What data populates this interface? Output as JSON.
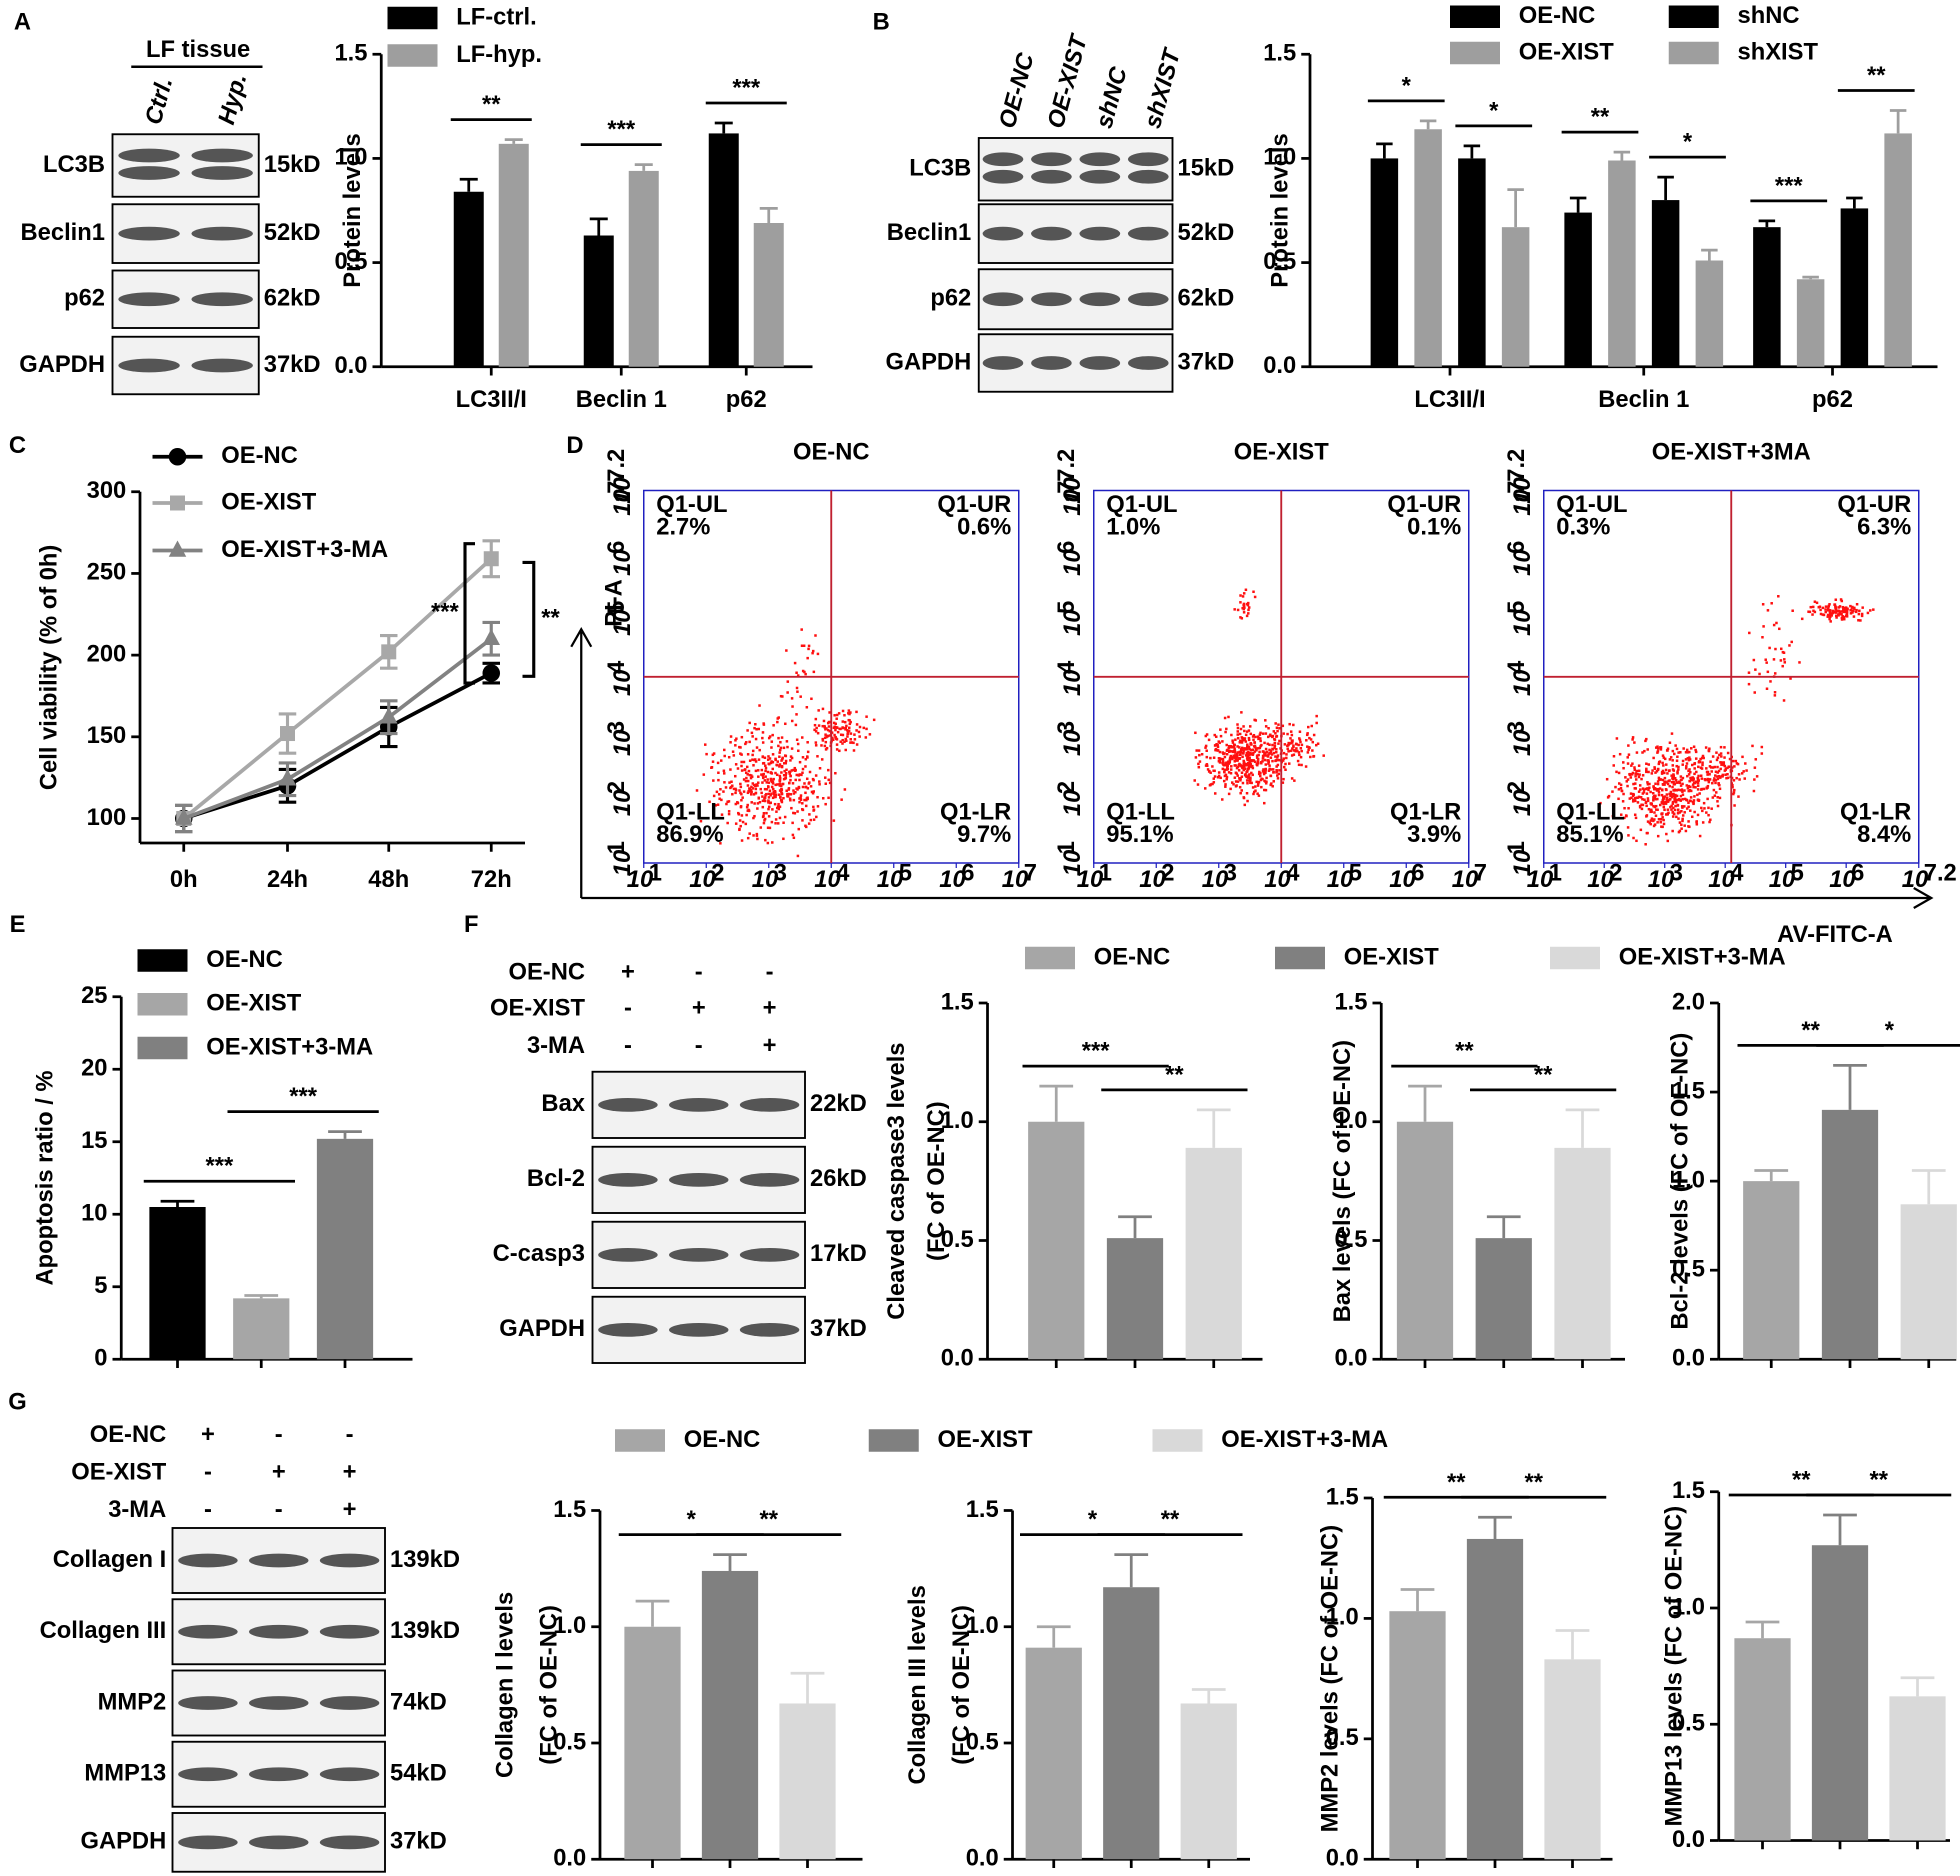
{
  "panels": [
    "A",
    "B",
    "C",
    "D",
    "E",
    "F",
    "G"
  ],
  "blots": [
    {
      "header": "LF tissue",
      "lanes": [
        "Ctrl.",
        "Hyp."
      ],
      "rows": [
        {
          "protein": "LC3B",
          "size": "15kD"
        },
        {
          "protein": "Beclin1",
          "size": "52kD"
        },
        {
          "protein": "p62",
          "size": "62kD"
        },
        {
          "protein": "GAPDH",
          "size": "37kD"
        }
      ]
    },
    {
      "lanes": [
        "OE-NC",
        "OE-XIST",
        "shNC",
        "shXIST"
      ],
      "rows": [
        {
          "protein": "LC3B",
          "size": "15kD"
        },
        {
          "protein": "Beclin1",
          "size": "52kD"
        },
        {
          "protein": "p62",
          "size": "62kD"
        },
        {
          "protein": "GAPDH",
          "size": "37kD"
        }
      ]
    },
    {
      "conditions": [
        {
          "label": "OE-NC",
          "signs": [
            "+",
            "-",
            "-"
          ]
        },
        {
          "label": "OE-XIST",
          "signs": [
            "-",
            "+",
            "+"
          ]
        },
        {
          "label": "3-MA",
          "signs": [
            "-",
            "-",
            "+"
          ]
        }
      ],
      "rows": [
        {
          "protein": "Bax",
          "size": "22kD"
        },
        {
          "protein": "Bcl-2",
          "size": "26kD"
        },
        {
          "protein": "C-casp3",
          "size": "17kD"
        },
        {
          "protein": "GAPDH",
          "size": "37kD"
        }
      ]
    },
    {
      "conditions": [
        {
          "label": "OE-NC",
          "signs": [
            "+",
            "-",
            "-"
          ]
        },
        {
          "label": "OE-XIST",
          "signs": [
            "-",
            "+",
            "+"
          ]
        },
        {
          "label": "3-MA",
          "signs": [
            "-",
            "-",
            "+"
          ]
        }
      ],
      "rows": [
        {
          "protein": "Collagen I",
          "size": "139kD"
        },
        {
          "protein": "Collagen III",
          "size": "139kD"
        },
        {
          "protein": "MMP2",
          "size": "74kD"
        },
        {
          "protein": "MMP13",
          "size": "54kD"
        },
        {
          "protein": "GAPDH",
          "size": "37kD"
        }
      ]
    }
  ],
  "flow": {
    "tick_base": "10",
    "xlabel": "AV-FITC-A",
    "ylabel": "PI-A",
    "ytick_exponents": [
      "1",
      "2",
      "3",
      "4",
      "5",
      "6",
      "7",
      "7.2"
    ],
    "panels": [
      {
        "title": "OE-NC",
        "xtick_exponents": [
          "1",
          "2",
          "3",
          "4",
          "5",
          "6",
          "7"
        ],
        "quadrants": [
          {
            "name": "Q1-UL",
            "value": "2.7%"
          },
          {
            "name": "Q1-UR",
            "value": "0.6%"
          },
          {
            "name": "Q1-LL",
            "value": "86.9%"
          },
          {
            "name": "Q1-LR",
            "value": "9.7%"
          }
        ]
      },
      {
        "title": "OE-XIST",
        "xtick_exponents": [
          "1",
          "2",
          "3",
          "4",
          "5",
          "6",
          "7"
        ],
        "quadrants": [
          {
            "name": "Q1-UL",
            "value": "1.0%"
          },
          {
            "name": "Q1-UR",
            "value": "0.1%"
          },
          {
            "name": "Q1-LL",
            "value": "95.1%"
          },
          {
            "name": "Q1-LR",
            "value": "3.9%"
          }
        ]
      },
      {
        "title": "OE-XIST+3MA",
        "xtick_exponents": [
          "1",
          "2",
          "3",
          "4",
          "5",
          "6",
          "7.2"
        ],
        "quadrants": [
          {
            "name": "Q1-UL",
            "value": "0.3%"
          },
          {
            "name": "Q1-UR",
            "value": "6.3%"
          },
          {
            "name": "Q1-LL",
            "value": "85.1%"
          },
          {
            "name": "Q1-LR",
            "value": "8.4%"
          }
        ]
      }
    ]
  },
  "chart_data": [
    {
      "type": "bar",
      "ylabel": "Protein levels",
      "categories": [
        "LC3II/I",
        "Beclin 1",
        "p62"
      ],
      "series": [
        {
          "name": "LF-ctrl.",
          "color": "#000000",
          "values": [
            0.84,
            0.63,
            1.12
          ],
          "errors": [
            0.06,
            0.08,
            0.05
          ]
        },
        {
          "name": "LF-hyp.",
          "color": "#9e9e9e",
          "values": [
            1.07,
            0.94,
            0.69
          ],
          "errors": [
            0.02,
            0.03,
            0.07
          ]
        }
      ],
      "ylim": [
        0,
        1.5
      ],
      "yticks": [
        {
          "value": 0,
          "label": "0.0"
        },
        {
          "value": 0.5,
          "label": "0.5"
        },
        {
          "value": 1,
          "label": "1.0"
        },
        {
          "value": 1.5,
          "label": "1.5"
        }
      ],
      "annotations": [
        "**",
        "***",
        "***"
      ]
    },
    {
      "type": "bar",
      "ylabel": "Protein levels",
      "categories": [
        "LC3II/I",
        "Beclin 1",
        "p62"
      ],
      "series": [
        {
          "name": "OE-NC",
          "color": "#000000",
          "values": [
            1.0,
            0.74,
            0.67
          ],
          "errors": [
            0.07,
            0.07,
            0.03
          ]
        },
        {
          "name": "OE-XIST",
          "color": "#9e9e9e",
          "values": [
            1.14,
            0.99,
            0.42
          ],
          "errors": [
            0.04,
            0.04,
            0.01
          ]
        },
        {
          "name": "shNC",
          "color": "#000000",
          "values": [
            1.0,
            0.8,
            0.76
          ],
          "errors": [
            0.06,
            0.11,
            0.05
          ]
        },
        {
          "name": "shXIST",
          "color": "#9e9e9e",
          "values": [
            0.67,
            0.51,
            1.12
          ],
          "errors": [
            0.18,
            0.05,
            0.11
          ]
        }
      ],
      "ylim": [
        0,
        1.5
      ],
      "yticks": [
        {
          "value": 0,
          "label": "0.0"
        },
        {
          "value": 0.5,
          "label": "0.5"
        },
        {
          "value": 1,
          "label": "1.0"
        },
        {
          "value": 1.5,
          "label": "1.5"
        }
      ],
      "annotations": [
        "*",
        "*",
        "**",
        "*",
        "***",
        "**"
      ]
    },
    {
      "type": "line",
      "ylabel": "Cell viability (% of 0h)",
      "categories": [
        "0h",
        "24h",
        "48h",
        "72h"
      ],
      "series": [
        {
          "name": "OE-NC",
          "color": "#000000",
          "marker": "circle",
          "values": [
            100,
            120,
            156,
            189
          ],
          "errors": [
            8,
            10,
            12,
            6
          ]
        },
        {
          "name": "OE-XIST",
          "color": "#a8a8a8",
          "marker": "square",
          "values": [
            100,
            152,
            202,
            259
          ],
          "errors": [
            8,
            12,
            10,
            11
          ]
        },
        {
          "name": "OE-XIST+3-MA",
          "color": "#828282",
          "marker": "triangle",
          "values": [
            100,
            124,
            162,
            210
          ],
          "errors": [
            8,
            10,
            10,
            10
          ]
        }
      ],
      "ylim": [
        85,
        300
      ],
      "yticks": [
        100,
        150,
        200,
        250,
        300
      ],
      "annotations": [
        "***",
        "**"
      ]
    },
    {
      "type": "bar",
      "ylabel": "Apoptosis ratio / %",
      "categories": [
        null
      ],
      "series": [
        {
          "name": "OE-NC",
          "color": "#000000",
          "values": [
            10.5
          ],
          "errors": [
            0.4
          ]
        },
        {
          "name": "OE-XIST",
          "color": "#a6a6a6",
          "values": [
            4.2
          ],
          "errors": [
            0.2
          ]
        },
        {
          "name": "OE-XIST+3-MA",
          "color": "#808080",
          "values": [
            15.2
          ],
          "errors": [
            0.5
          ]
        }
      ],
      "ylim": [
        0,
        25
      ],
      "yticks": [
        0,
        5,
        10,
        15,
        20,
        25
      ],
      "annotations": [
        "***",
        "***"
      ]
    },
    {
      "type": "bar",
      "series": [
        {
          "name": "OE-NC",
          "color": "#a6a6a6",
          "values": [
            1.0,
            1.0,
            1.0
          ],
          "errors": [
            0.15,
            0.15,
            0.06
          ]
        },
        {
          "name": "OE-XIST",
          "color": "#808080",
          "values": [
            0.51,
            0.51,
            1.4
          ],
          "errors": [
            0.09,
            0.09,
            0.25
          ]
        },
        {
          "name": "OE-XIST+3-MA",
          "color": "#d9d9d9",
          "values": [
            0.89,
            0.89,
            0.87
          ],
          "errors": [
            0.16,
            0.16,
            0.19
          ]
        }
      ],
      "subplots": [
        {
          "ylabel": [
            "Cleaved caspase3 levels",
            "(FC of OE-NC)"
          ],
          "ylim": [
            0,
            1.5
          ],
          "yticks": [
            {
              "value": 0,
              "label": "0.0"
            },
            {
              "value": 0.5,
              "label": "0.5"
            },
            {
              "value": 1,
              "label": "1.0"
            },
            {
              "value": 1.5,
              "label": "1.5"
            }
          ],
          "annotations": [
            "***",
            "**"
          ]
        },
        {
          "ylabel": "Bax levels (FC of OE-NC)",
          "ylim": [
            0,
            1.5
          ],
          "yticks": [
            {
              "value": 0,
              "label": "0.0"
            },
            {
              "value": 0.5,
              "label": "0.5"
            },
            {
              "value": 1,
              "label": "1.0"
            },
            {
              "value": 1.5,
              "label": "1.5"
            }
          ],
          "annotations": [
            "**",
            "**"
          ]
        },
        {
          "ylabel": "Bcl-2 levels (FC of OE-NC)",
          "ylim": [
            0,
            2
          ],
          "yticks": [
            {
              "value": 0,
              "label": "0.0"
            },
            {
              "value": 0.5,
              "label": "0.5"
            },
            {
              "value": 1,
              "label": "1.0"
            },
            {
              "value": 1.5,
              "label": "1.5"
            },
            {
              "value": 2,
              "label": "2.0"
            }
          ],
          "annotations": [
            "**",
            "*"
          ]
        }
      ]
    },
    {
      "type": "bar",
      "series": [
        {
          "name": "OE-NC",
          "color": "#a6a6a6",
          "values": [
            1.0,
            0.91,
            1.03,
            0.87
          ],
          "errors": [
            0.11,
            0.09,
            0.09,
            0.07
          ]
        },
        {
          "name": "OE-XIST",
          "color": "#808080",
          "values": [
            1.24,
            1.17,
            1.33,
            1.27
          ],
          "errors": [
            0.07,
            0.14,
            0.09,
            0.13
          ]
        },
        {
          "name": "OE-XIST+3-MA",
          "color": "#d9d9d9",
          "values": [
            0.67,
            0.67,
            0.83,
            0.62
          ],
          "errors": [
            0.13,
            0.06,
            0.12,
            0.08
          ]
        }
      ],
      "subplots": [
        {
          "ylabel": [
            "Collagen I levels",
            "(FC of OE-NC)"
          ],
          "ylim": [
            0,
            1.5
          ],
          "yticks": [
            {
              "value": 0,
              "label": "0.0"
            },
            {
              "value": 0.5,
              "label": "0.5"
            },
            {
              "value": 1,
              "label": "1.0"
            },
            {
              "value": 1.5,
              "label": "1.5"
            }
          ],
          "annotations": [
            "*",
            "**"
          ]
        },
        {
          "ylabel": [
            "Collagen III levels",
            "(FC of OE-NC)"
          ],
          "ylim": [
            0,
            1.5
          ],
          "yticks": [
            {
              "value": 0,
              "label": "0.0"
            },
            {
              "value": 0.5,
              "label": "0.5"
            },
            {
              "value": 1,
              "label": "1.0"
            },
            {
              "value": 1.5,
              "label": "1.5"
            }
          ],
          "annotations": [
            "*",
            "**"
          ]
        },
        {
          "ylabel": "MMP2 levels (FC of OE-NC)",
          "ylim": [
            0,
            1.5
          ],
          "yticks": [
            {
              "value": 0,
              "label": "0.0"
            },
            {
              "value": 0.5,
              "label": "0.5"
            },
            {
              "value": 1,
              "label": "1.0"
            },
            {
              "value": 1.5,
              "label": "1.5"
            }
          ],
          "annotations": [
            "**",
            "**"
          ]
        },
        {
          "ylabel": "MMP13 levels (FC of OE-NC)",
          "ylim": [
            0,
            1.5
          ],
          "yticks": [
            {
              "value": 0,
              "label": "0.0"
            },
            {
              "value": 0.5,
              "label": "0.5"
            },
            {
              "value": 1,
              "label": "1.0"
            },
            {
              "value": 1.5,
              "label": "1.5"
            }
          ],
          "annotations": [
            "**",
            "**"
          ]
        }
      ]
    }
  ]
}
